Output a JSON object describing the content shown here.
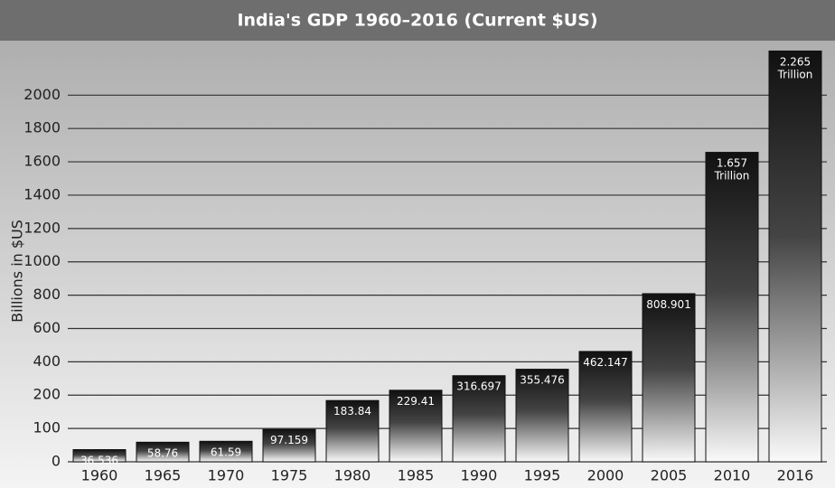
{
  "chart_data": {
    "type": "bar",
    "title": "India's GDP 1960–2016 (Current $US)",
    "y_label": "Billions in $US",
    "categories": [
      "1960",
      "1965",
      "1970",
      "1975",
      "1980",
      "1985",
      "1990",
      "1995",
      "2000",
      "2005",
      "2010",
      "2016"
    ],
    "values": [
      36.536,
      58.76,
      61.59,
      97.159,
      183.84,
      229.41,
      316.697,
      355.476,
      462.147,
      808.901,
      1657,
      2265
    ],
    "value_labels": [
      "36.536",
      "58.76",
      "61.59",
      "97.159",
      "183.84",
      "229.41",
      "316.697",
      "355.476",
      "462.147",
      "808.901",
      "1.657 Trillion",
      "2.265 Trillion"
    ],
    "color": "#111111",
    "ylim": [
      0,
      2300
    ],
    "yticks": [
      0,
      100,
      200,
      400,
      600,
      800,
      1000,
      1200,
      1400,
      1600,
      1800,
      2000
    ],
    "grid": true
  }
}
